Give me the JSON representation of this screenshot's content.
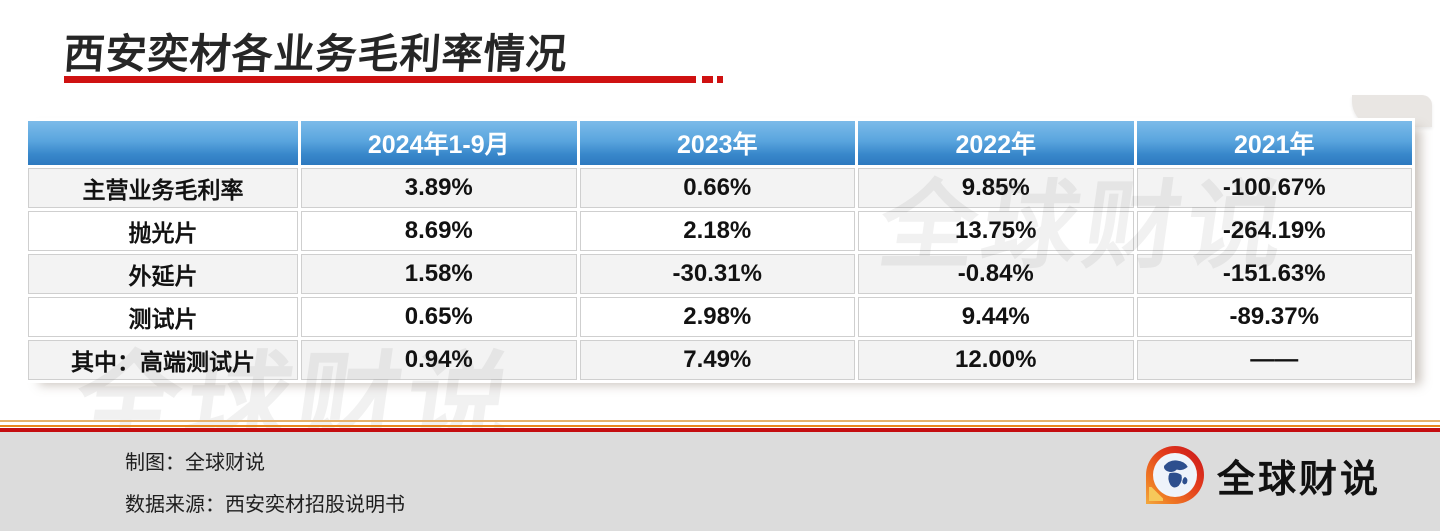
{
  "title": {
    "text": "西安奕材各业务毛利率情况",
    "underline_color": "#cf1111"
  },
  "chart_data": {
    "type": "table",
    "title": "西安奕材各业务毛利率情况",
    "columns": [
      "",
      "2024年1-9月",
      "2023年",
      "2022年",
      "2021年"
    ],
    "rows": [
      {
        "label": "主营业务毛利率",
        "values": [
          "3.89%",
          "0.66%",
          "9.85%",
          "-100.67%"
        ]
      },
      {
        "label": "抛光片",
        "values": [
          "8.69%",
          "2.18%",
          "13.75%",
          "-264.19%"
        ]
      },
      {
        "label": "外延片",
        "values": [
          "1.58%",
          "-30.31%",
          "-0.84%",
          "-151.63%"
        ]
      },
      {
        "label": "测试片",
        "values": [
          "0.65%",
          "2.98%",
          "9.44%",
          "-89.37%"
        ]
      },
      {
        "label": "其中：高端测试片",
        "values": [
          "0.94%",
          "7.49%",
          "12.00%",
          "——"
        ]
      }
    ],
    "layout": {
      "header_bg_top": "#7cbbe9",
      "header_bg_bottom": "#2d79bf",
      "header_text_color": "#ffffff",
      "alt_row_bg": "#f3f3f3",
      "cell_border_color": "#cfcfcf"
    }
  },
  "watermark": {
    "text": "全球财说"
  },
  "footer": {
    "credit_line1": "制图：全球财说",
    "credit_line2": "数据来源：西安奕材招股说明书",
    "brand_name": "全球财说",
    "bg_color": "#dcdcdc",
    "line_red": "#c40d10",
    "line_orange": "#e8861c",
    "line_tan": "#e5b06a"
  }
}
